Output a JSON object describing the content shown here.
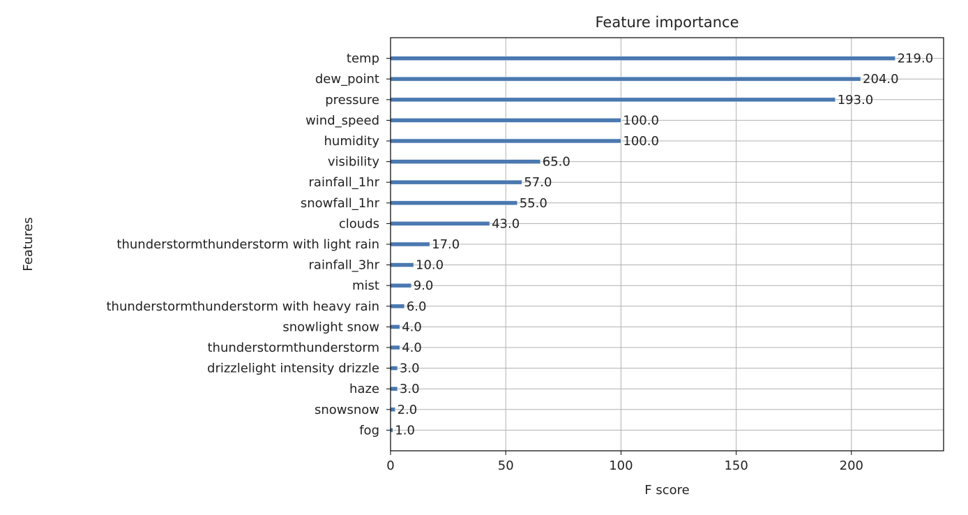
{
  "chart_data": {
    "type": "bar",
    "orientation": "horizontal",
    "title": "Feature importance",
    "xlabel": "F score",
    "ylabel": "Features",
    "xlim": [
      0,
      240
    ],
    "xticks": [
      0,
      50,
      100,
      150,
      200
    ],
    "grid": true,
    "bar_color": "#4a78b0",
    "categories": [
      "temp",
      "dew_point",
      "pressure",
      "wind_speed",
      "humidity",
      "visibility",
      "rainfall_1hr",
      "snowfall_1hr",
      "clouds",
      "thunderstormthunderstorm with light rain",
      "rainfall_3hr",
      "mist",
      "thunderstormthunderstorm with heavy rain",
      "snowlight snow",
      "thunderstormthunderstorm",
      "drizzlelight intensity drizzle",
      "haze",
      "snowsnow",
      "fog"
    ],
    "values": [
      219.0,
      204.0,
      193.0,
      100.0,
      100.0,
      65.0,
      57.0,
      55.0,
      43.0,
      17.0,
      10.0,
      9.0,
      6.0,
      4.0,
      4.0,
      3.0,
      3.0,
      2.0,
      1.0
    ],
    "value_labels": [
      "219.0",
      "204.0",
      "193.0",
      "100.0",
      "100.0",
      "65.0",
      "57.0",
      "55.0",
      "43.0",
      "17.0",
      "10.0",
      "9.0",
      "6.0",
      "4.0",
      "4.0",
      "3.0",
      "3.0",
      "2.0",
      "1.0"
    ]
  }
}
